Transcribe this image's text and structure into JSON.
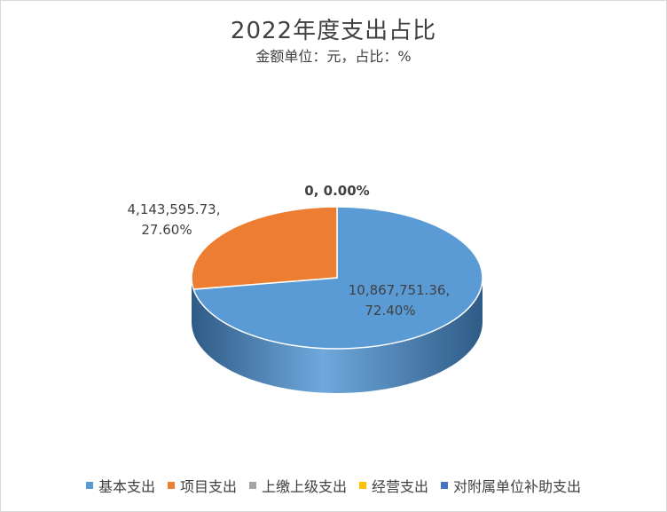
{
  "chart_data": {
    "type": "pie",
    "title": "2022年度支出占比",
    "subtitle": "金额单位：元，占比：%",
    "labels": [
      "基本支出",
      "项目支出",
      "上缴上级支出",
      "经营支出",
      "对附属单位补助支出"
    ],
    "values": [
      10867751.36,
      4143595.73,
      0,
      0,
      0
    ],
    "percentages": [
      "72.40%",
      "27.60%",
      "0.00%",
      "0.00%",
      "0.00%"
    ],
    "data_labels": [
      {
        "value_text": "10,867,751.36,",
        "percent_text": "72.40%"
      },
      {
        "value_text": "4,143,595.73,",
        "percent_text": "27.60%"
      },
      {
        "combined_text": "0, 0.00%"
      }
    ],
    "colors": [
      "#5b9bd5",
      "#ed7d31",
      "#a5a5a5",
      "#ffc000",
      "#4472c4"
    ],
    "legend_position": "bottom"
  }
}
